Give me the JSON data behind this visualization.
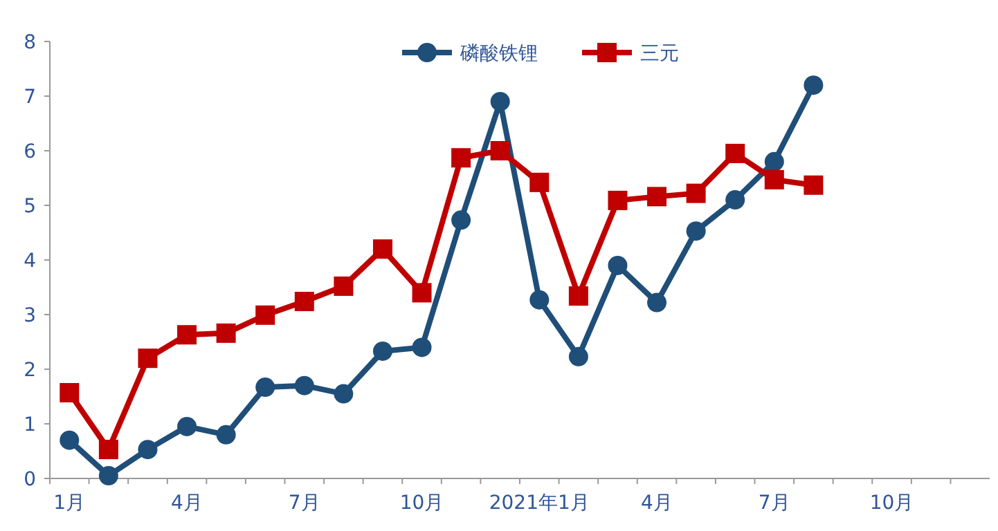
{
  "chart_data": {
    "type": "line",
    "categories": [
      "1月",
      null,
      null,
      "4月",
      null,
      null,
      "7月",
      null,
      null,
      "10月",
      null,
      null,
      "2021年1月",
      null,
      null,
      "4月",
      null,
      null,
      "7月",
      null,
      null,
      "10月",
      null,
      null
    ],
    "series": [
      {
        "name": "磷酸铁锂",
        "color": "#1f4e79",
        "marker": "circle",
        "values": [
          0.7,
          0.05,
          0.53,
          0.95,
          0.8,
          1.67,
          1.7,
          1.55,
          2.33,
          2.4,
          4.73,
          6.9,
          3.27,
          2.23,
          3.9,
          3.22,
          4.53,
          5.1,
          5.8,
          7.2,
          null,
          null,
          null,
          null
        ]
      },
      {
        "name": "三元",
        "color": "#c00000",
        "marker": "square",
        "values": [
          1.57,
          0.53,
          2.2,
          2.63,
          2.66,
          2.99,
          3.24,
          3.52,
          4.2,
          3.4,
          5.87,
          6.0,
          5.42,
          3.34,
          5.09,
          5.16,
          5.22,
          5.95,
          5.47,
          5.37,
          null,
          null,
          null,
          null
        ]
      }
    ],
    "ylim": [
      0,
      8
    ],
    "yticks": [
      0,
      1,
      2,
      3,
      4,
      5,
      6,
      7,
      8
    ],
    "grid": false,
    "legend": "top",
    "line_style": "solid"
  }
}
